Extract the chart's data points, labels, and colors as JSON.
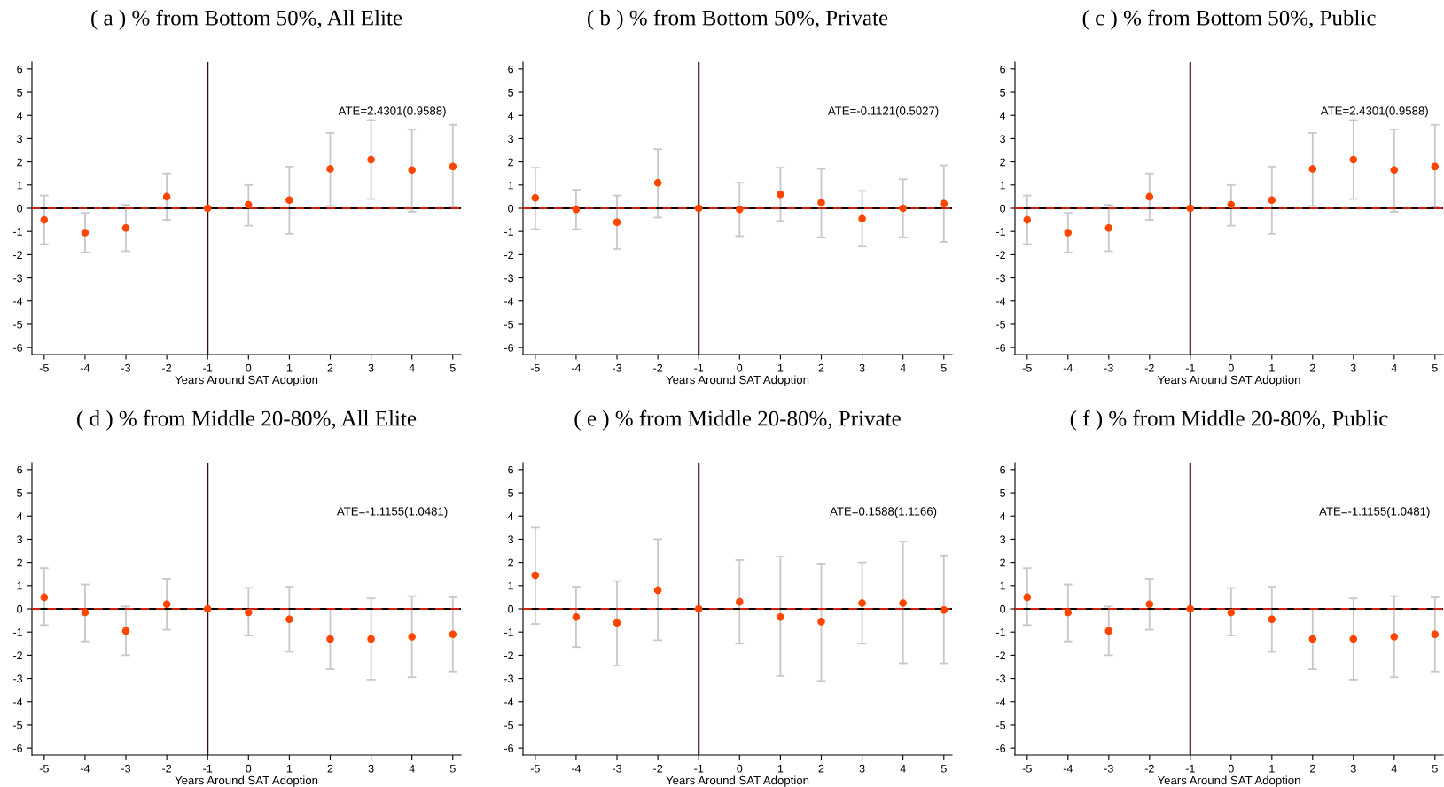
{
  "chart_data": [
    {
      "type": "scatter",
      "title": "( a ) % from Bottom 50%, All Elite",
      "xlabel": "Years Around SAT Adoption",
      "annotations": [
        "ATE=2.4301(0.9588)"
      ],
      "color": "#ff4500",
      "marker": "circle",
      "x": [
        -5,
        -4,
        -3,
        -2,
        -1,
        0,
        1,
        2,
        3,
        4,
        5
      ],
      "values": [
        -0.5,
        -1.05,
        -0.85,
        0.5,
        0,
        0.15,
        0.35,
        1.7,
        2.1,
        1.65,
        1.8
      ],
      "errors": [
        [
          -1.55,
          0.55
        ],
        [
          -1.9,
          -0.2
        ],
        [
          -1.85,
          0.15
        ],
        [
          -0.5,
          1.5
        ],
        null,
        [
          -0.75,
          1.0
        ],
        [
          -1.1,
          1.8
        ],
        [
          0.1,
          3.25
        ],
        [
          0.4,
          3.8
        ],
        [
          -0.15,
          3.4
        ],
        [
          0.05,
          3.6
        ]
      ],
      "xlim": [
        -5.3,
        5.2
      ],
      "ylim": [
        -6.3,
        6.3
      ],
      "xticks": [
        -5,
        -4,
        -3,
        -2,
        -1,
        0,
        1,
        2,
        3,
        4,
        5
      ],
      "yticks": [
        -6,
        -5,
        -4,
        -3,
        -2,
        -1,
        0,
        1,
        2,
        3,
        4,
        5,
        6
      ],
      "grid": false,
      "ref_lines": [
        {
          "axis": "y",
          "value": 0,
          "color": "#d02010",
          "line_style": "dashed"
        },
        {
          "axis": "x",
          "value": -1,
          "color": "#3a0a0a",
          "line_style": "solid"
        }
      ]
    },
    {
      "type": "scatter",
      "title": "( b ) % from Bottom 50%, Private",
      "xlabel": "Years Around SAT Adoption",
      "annotations": [
        "ATE=-0.1121(0.5027)"
      ],
      "color": "#ff4500",
      "marker": "circle",
      "x": [
        -5,
        -4,
        -3,
        -2,
        -1,
        0,
        1,
        2,
        3,
        4,
        5
      ],
      "values": [
        0.45,
        -0.05,
        -0.6,
        1.1,
        0,
        -0.05,
        0.6,
        0.25,
        -0.45,
        0,
        0.2
      ],
      "errors": [
        [
          -0.9,
          1.75
        ],
        [
          -0.9,
          0.8
        ],
        [
          -1.75,
          0.55
        ],
        [
          -0.4,
          2.55
        ],
        null,
        [
          -1.2,
          1.1
        ],
        [
          -0.55,
          1.75
        ],
        [
          -1.25,
          1.7
        ],
        [
          -1.65,
          0.75
        ],
        [
          -1.25,
          1.25
        ],
        [
          -1.45,
          1.85
        ]
      ],
      "xlim": [
        -5.3,
        5.2
      ],
      "ylim": [
        -6.3,
        6.3
      ],
      "xticks": [
        -5,
        -4,
        -3,
        -2,
        -1,
        0,
        1,
        2,
        3,
        4,
        5
      ],
      "yticks": [
        -6,
        -5,
        -4,
        -3,
        -2,
        -1,
        0,
        1,
        2,
        3,
        4,
        5,
        6
      ],
      "grid": false,
      "ref_lines": [
        {
          "axis": "y",
          "value": 0,
          "color": "#d02010",
          "line_style": "dashed"
        },
        {
          "axis": "x",
          "value": -1,
          "color": "#3a0a0a",
          "line_style": "solid"
        }
      ]
    },
    {
      "type": "scatter",
      "title": "( c ) % from Bottom 50%, Public",
      "xlabel": "Years Around SAT Adoption",
      "annotations": [
        "ATE=2.4301(0.9588)"
      ],
      "color": "#ff4500",
      "marker": "circle",
      "x": [
        -5,
        -4,
        -3,
        -2,
        -1,
        0,
        1,
        2,
        3,
        4,
        5
      ],
      "values": [
        -0.5,
        -1.05,
        -0.85,
        0.5,
        0,
        0.15,
        0.35,
        1.7,
        2.1,
        1.65,
        1.8
      ],
      "errors": [
        [
          -1.55,
          0.55
        ],
        [
          -1.9,
          -0.2
        ],
        [
          -1.85,
          0.15
        ],
        [
          -0.5,
          1.5
        ],
        null,
        [
          -0.75,
          1.0
        ],
        [
          -1.1,
          1.8
        ],
        [
          0.1,
          3.25
        ],
        [
          0.4,
          3.8
        ],
        [
          -0.15,
          3.4
        ],
        [
          0.05,
          3.6
        ]
      ],
      "xlim": [
        -5.3,
        5.2
      ],
      "ylim": [
        -6.3,
        6.3
      ],
      "xticks": [
        -5,
        -4,
        -3,
        -2,
        -1,
        0,
        1,
        2,
        3,
        4,
        5
      ],
      "yticks": [
        -6,
        -5,
        -4,
        -3,
        -2,
        -1,
        0,
        1,
        2,
        3,
        4,
        5,
        6
      ],
      "grid": false,
      "ref_lines": [
        {
          "axis": "y",
          "value": 0,
          "color": "#d02010",
          "line_style": "dashed"
        },
        {
          "axis": "x",
          "value": -1,
          "color": "#3a0a0a",
          "line_style": "solid"
        }
      ]
    },
    {
      "type": "scatter",
      "title": "( d ) % from Middle 20-80%, All Elite",
      "xlabel": "Years Around SAT Adoption",
      "annotations": [
        "ATE=-1.1155(1.0481)"
      ],
      "color": "#ff4500",
      "marker": "circle",
      "x": [
        -5,
        -4,
        -3,
        -2,
        -1,
        0,
        1,
        2,
        3,
        4,
        5
      ],
      "values": [
        0.5,
        -0.15,
        -0.95,
        0.2,
        0,
        -0.15,
        -0.45,
        -1.3,
        -1.3,
        -1.2,
        -1.1
      ],
      "errors": [
        [
          -0.7,
          1.75
        ],
        [
          -1.4,
          1.05
        ],
        [
          -2.0,
          0.1
        ],
        [
          -0.9,
          1.3
        ],
        null,
        [
          -1.15,
          0.9
        ],
        [
          -1.85,
          0.95
        ],
        [
          -2.6,
          0.0
        ],
        [
          -3.05,
          0.45
        ],
        [
          -2.95,
          0.55
        ],
        [
          -2.7,
          0.5
        ]
      ],
      "xlim": [
        -5.3,
        5.2
      ],
      "ylim": [
        -6.3,
        6.3
      ],
      "xticks": [
        -5,
        -4,
        -3,
        -2,
        -1,
        0,
        1,
        2,
        3,
        4,
        5
      ],
      "yticks": [
        -6,
        -5,
        -4,
        -3,
        -2,
        -1,
        0,
        1,
        2,
        3,
        4,
        5,
        6
      ],
      "grid": false,
      "ref_lines": [
        {
          "axis": "y",
          "value": 0,
          "color": "#d02010",
          "line_style": "dashed"
        },
        {
          "axis": "x",
          "value": -1,
          "color": "#3a0a0a",
          "line_style": "solid"
        }
      ]
    },
    {
      "type": "scatter",
      "title": "( e ) % from Middle 20-80%, Private",
      "xlabel": "Years Around SAT Adoption",
      "annotations": [
        "ATE=0.1588(1.1166)"
      ],
      "color": "#ff4500",
      "marker": "circle",
      "x": [
        -5,
        -4,
        -3,
        -2,
        -1,
        0,
        1,
        2,
        3,
        4,
        5
      ],
      "values": [
        1.45,
        -0.35,
        -0.6,
        0.8,
        0,
        0.3,
        -0.35,
        -0.55,
        0.25,
        0.25,
        -0.05
      ],
      "errors": [
        [
          -0.65,
          3.5
        ],
        [
          -1.65,
          0.95
        ],
        [
          -2.45,
          1.2
        ],
        [
          -1.35,
          3.0
        ],
        null,
        [
          -1.5,
          2.1
        ],
        [
          -2.9,
          2.25
        ],
        [
          -3.1,
          1.95
        ],
        [
          -1.5,
          2.0
        ],
        [
          -2.35,
          2.9
        ],
        [
          -2.35,
          2.3
        ]
      ],
      "xlim": [
        -5.3,
        5.2
      ],
      "ylim": [
        -6.3,
        6.3
      ],
      "xticks": [
        -5,
        -4,
        -3,
        -2,
        -1,
        0,
        1,
        2,
        3,
        4,
        5
      ],
      "yticks": [
        -6,
        -5,
        -4,
        -3,
        -2,
        -1,
        0,
        1,
        2,
        3,
        4,
        5,
        6
      ],
      "grid": false,
      "ref_lines": [
        {
          "axis": "y",
          "value": 0,
          "color": "#d02010",
          "line_style": "dashed"
        },
        {
          "axis": "x",
          "value": -1,
          "color": "#3a0a0a",
          "line_style": "solid"
        }
      ]
    },
    {
      "type": "scatter",
      "title": "( f ) % from Middle 20-80%, Public",
      "xlabel": "Years Around SAT Adoption",
      "annotations": [
        "ATE=-1.1155(1.0481)"
      ],
      "color": "#ff4500",
      "marker": "circle",
      "x": [
        -5,
        -4,
        -3,
        -2,
        -1,
        0,
        1,
        2,
        3,
        4,
        5
      ],
      "values": [
        0.5,
        -0.15,
        -0.95,
        0.2,
        0,
        -0.15,
        -0.45,
        -1.3,
        -1.3,
        -1.2,
        -1.1
      ],
      "errors": [
        [
          -0.7,
          1.75
        ],
        [
          -1.4,
          1.05
        ],
        [
          -2.0,
          0.1
        ],
        [
          -0.9,
          1.3
        ],
        null,
        [
          -1.15,
          0.9
        ],
        [
          -1.85,
          0.95
        ],
        [
          -2.6,
          0.0
        ],
        [
          -3.05,
          0.45
        ],
        [
          -2.95,
          0.55
        ],
        [
          -2.7,
          0.5
        ]
      ],
      "xlim": [
        -5.3,
        5.2
      ],
      "ylim": [
        -6.3,
        6.3
      ],
      "xticks": [
        -5,
        -4,
        -3,
        -2,
        -1,
        0,
        1,
        2,
        3,
        4,
        5
      ],
      "yticks": [
        -6,
        -5,
        -4,
        -3,
        -2,
        -1,
        0,
        1,
        2,
        3,
        4,
        5,
        6
      ],
      "grid": false,
      "ref_lines": [
        {
          "axis": "y",
          "value": 0,
          "color": "#d02010",
          "line_style": "dashed"
        },
        {
          "axis": "x",
          "value": -1,
          "color": "#3a0a0a",
          "line_style": "solid"
        }
      ]
    }
  ]
}
